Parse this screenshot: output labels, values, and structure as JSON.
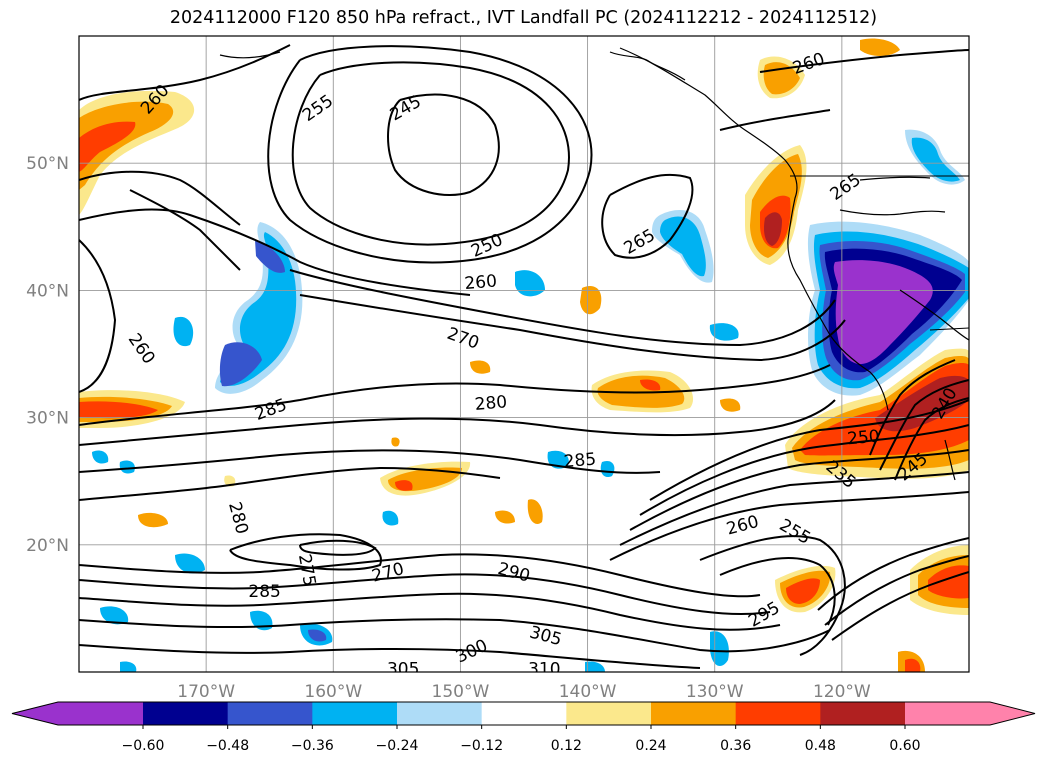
{
  "title": "2024112000 F120 850 hPa refract., IVT Landfall PC (2024112212 - 2024112512)",
  "map": {
    "extent": {
      "lon_min": -180,
      "lon_max": -110,
      "lat_min": 10,
      "lat_max": 60
    },
    "lat_labels": [
      {
        "lat": 50,
        "text": "50°N"
      },
      {
        "lat": 40,
        "text": "40°N"
      },
      {
        "lat": 30,
        "text": "30°N"
      },
      {
        "lat": 20,
        "text": "20°N"
      }
    ],
    "lon_labels": [
      {
        "lon": -170,
        "text": "170°W"
      },
      {
        "lon": -160,
        "text": "160°W"
      },
      {
        "lon": -150,
        "text": "150°W"
      },
      {
        "lon": -140,
        "text": "140°W"
      },
      {
        "lon": -130,
        "text": "130°W"
      },
      {
        "lon": -120,
        "text": "120°W"
      }
    ],
    "contour_labels": [
      {
        "text": "260",
        "lon": -174,
        "lat": 55.0,
        "rot": -48
      },
      {
        "text": "255",
        "lon": -161.2,
        "lat": 54.3,
        "rot": -35
      },
      {
        "text": "245",
        "lon": -154.3,
        "lat": 54.3,
        "rot": -30
      },
      {
        "text": "250",
        "lon": -147.9,
        "lat": 43.5,
        "rot": -25
      },
      {
        "text": "260",
        "lon": -148.4,
        "lat": 40.6,
        "rot": -5
      },
      {
        "text": "265",
        "lon": -135.9,
        "lat": 43.8,
        "rot": -30
      },
      {
        "text": "270",
        "lon": -149.8,
        "lat": 36.2,
        "rot": 20
      },
      {
        "text": "260",
        "lon": -175.1,
        "lat": 35.4,
        "rot": 55
      },
      {
        "text": "285",
        "lon": -164.9,
        "lat": 30.6,
        "rot": -20
      },
      {
        "text": "280",
        "lon": -147.6,
        "lat": 31.1,
        "rot": -5
      },
      {
        "text": "285",
        "lon": -140.6,
        "lat": 26.6,
        "rot": -5
      },
      {
        "text": "280",
        "lon": -167.5,
        "lat": 22.1,
        "rot": 75
      },
      {
        "text": "275",
        "lon": -162.1,
        "lat": 18.0,
        "rot": 80
      },
      {
        "text": "270",
        "lon": -155.7,
        "lat": 17.8,
        "rot": -15
      },
      {
        "text": "285",
        "lon": -165.4,
        "lat": 16.3,
        "rot": 0
      },
      {
        "text": "290",
        "lon": -145.8,
        "lat": 17.8,
        "rot": 15
      },
      {
        "text": "305",
        "lon": -143.3,
        "lat": 12.8,
        "rot": 15
      },
      {
        "text": "300",
        "lon": -149.1,
        "lat": 11.6,
        "rot": -25
      },
      {
        "text": "305",
        "lon": -154.5,
        "lat": 10.2,
        "rot": 0
      },
      {
        "text": "310",
        "lon": -143.4,
        "lat": 10.2,
        "rot": 0
      },
      {
        "text": "295",
        "lon": -126.1,
        "lat": 14.5,
        "rot": -30
      },
      {
        "text": "260",
        "lon": -127.8,
        "lat": 21.5,
        "rot": -15
      },
      {
        "text": "255",
        "lon": -123.7,
        "lat": 21.0,
        "rot": 30
      },
      {
        "text": "235",
        "lon": -120.1,
        "lat": 25.5,
        "rot": 40
      },
      {
        "text": "250",
        "lon": -118.3,
        "lat": 28.4,
        "rot": -5
      },
      {
        "text": "245",
        "lon": -114.4,
        "lat": 26.1,
        "rot": -40
      },
      {
        "text": "240",
        "lon": -111.9,
        "lat": 31.1,
        "rot": -60
      },
      {
        "text": "260",
        "lon": -122.6,
        "lat": 57.8,
        "rot": -20
      },
      {
        "text": "265",
        "lon": -119.7,
        "lat": 48.1,
        "rot": -35
      }
    ]
  },
  "colorbar": {
    "ticks": [
      "−0.60",
      "−0.48",
      "−0.36",
      "−0.24",
      "−0.12",
      "0.12",
      "0.24",
      "0.36",
      "0.48",
      "0.60"
    ],
    "colors": [
      "#9a32cd",
      "#000090",
      "#3655cd",
      "#00b2f2",
      "#aedcf7",
      "#ffffff",
      "#fbe88c",
      "#f9a000",
      "#ff3d00",
      "#b02020",
      "#ff82ab"
    ]
  }
}
